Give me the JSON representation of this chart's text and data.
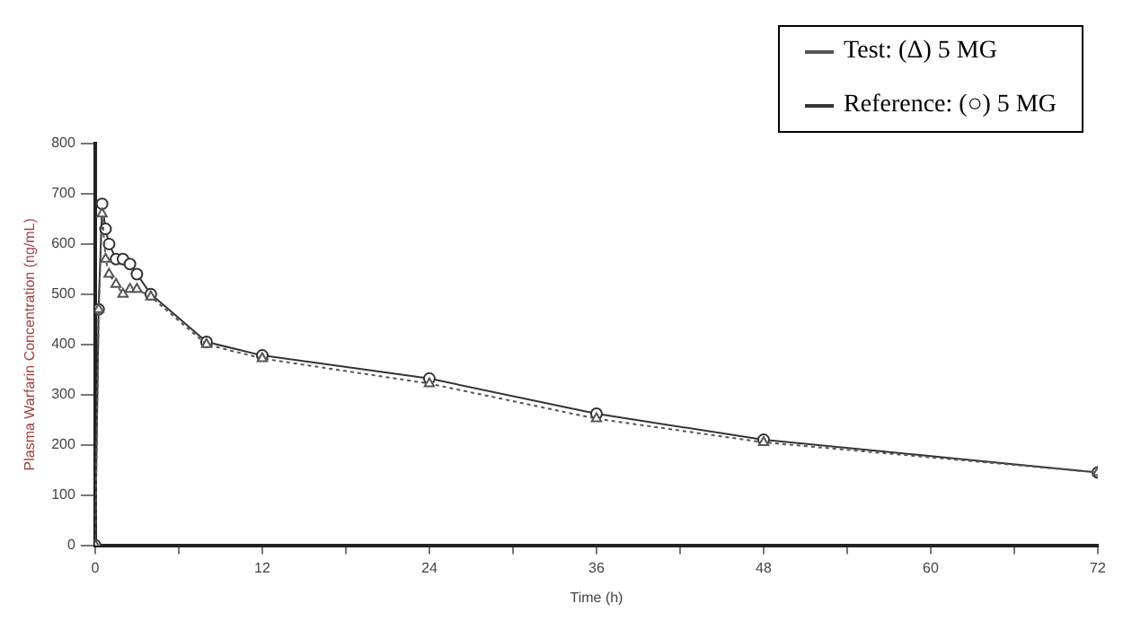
{
  "chart_data": {
    "type": "line",
    "xlabel": "Time (h)",
    "ylabel": "Plasma Warfarin Concentration (ng/mL)",
    "x": [
      0,
      0.25,
      0.5,
      0.75,
      1,
      1.5,
      2,
      2.5,
      3,
      4,
      8,
      12,
      24,
      36,
      48,
      72
    ],
    "series": [
      {
        "name": "Test: (Δ) 5 MG",
        "color": "#555555",
        "marker": "triangle",
        "line_style": "dotted",
        "values": [
          0,
          470,
          660,
          570,
          540,
          520,
          500,
          510,
          510,
          495,
          400,
          372,
          322,
          252,
          205,
          145
        ]
      },
      {
        "name": "Reference: (○) 5 MG",
        "color": "#333333",
        "marker": "circle",
        "line_style": "solid",
        "values": [
          0,
          470,
          680,
          630,
          600,
          570,
          570,
          560,
          540,
          500,
          405,
          378,
          332,
          262,
          210,
          145
        ]
      }
    ],
    "xlim": [
      0,
      72
    ],
    "xticks": [
      0,
      {
        "value": 6,
        "label": null
      },
      12,
      {
        "value": 18,
        "label": null
      },
      24,
      {
        "value": 30,
        "label": null
      },
      36,
      {
        "value": 42,
        "label": null
      },
      48,
      {
        "value": 54,
        "label": null
      },
      60,
      {
        "value": 66,
        "label": null
      },
      72
    ],
    "ylim": [
      0,
      800
    ],
    "yticks": [
      0,
      100,
      200,
      300,
      400,
      500,
      600,
      700,
      800
    ],
    "grid": false,
    "legend": "top right"
  }
}
